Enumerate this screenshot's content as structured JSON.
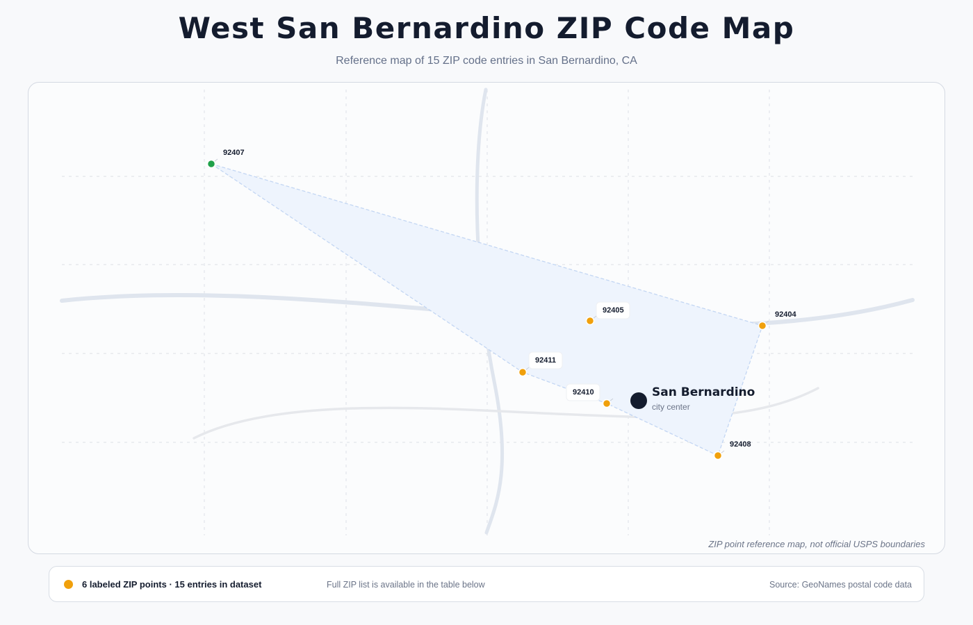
{
  "title": "West San Bernardino ZIP Code Map",
  "subtitle": "Reference map of 15 ZIP code entries in San Bernardino, CA",
  "map": {
    "disclaimer": "ZIP point reference map, not official USPS boundaries",
    "city": {
      "name": "San Bernardino",
      "caption": "city center"
    },
    "zip_points": [
      {
        "zip": "92407",
        "status": "green"
      },
      {
        "zip": "92405",
        "status": "orange"
      },
      {
        "zip": "92404",
        "status": "orange"
      },
      {
        "zip": "92411",
        "status": "orange"
      },
      {
        "zip": "92410",
        "status": "orange"
      },
      {
        "zip": "92408",
        "status": "orange"
      }
    ],
    "colors": {
      "orange": "#f0a00c",
      "green": "#1fa14a",
      "city": "#141c2e",
      "area_fill": "#eef4fd",
      "area_stroke": "#c3d6f3",
      "road": "#dfe5ee",
      "road_minor": "#e6e8ec",
      "grid": "#e2e5ea"
    }
  },
  "legend": {
    "main": "6 labeled ZIP points · 15 entries in dataset",
    "note": "Full ZIP list is available in the table below",
    "source": "Source: GeoNames postal code data"
  }
}
